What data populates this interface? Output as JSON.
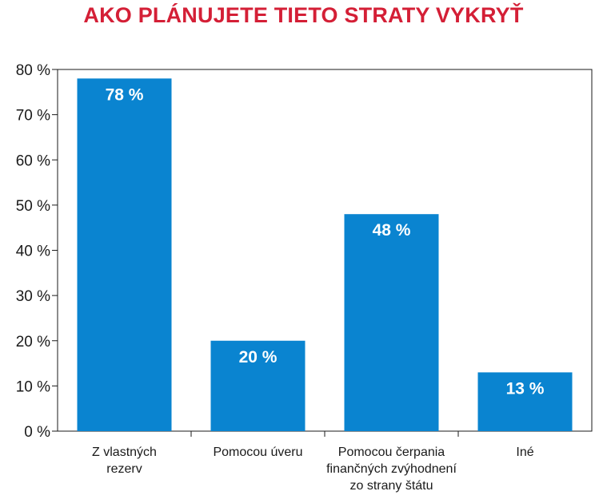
{
  "chart_data": {
    "type": "bar",
    "title": "AKO PLÁNUJETE TIETO STRATY VYKRYŤ",
    "categories": [
      [
        "Z vlastných",
        "rezerv"
      ],
      [
        "Pomocou úveru"
      ],
      [
        "Pomocou čerpania",
        "finančných zvýhodnení",
        "zo strany štátu"
      ],
      [
        "Iné"
      ]
    ],
    "values": [
      78,
      20,
      48,
      13
    ],
    "data_labels": [
      "78 %",
      "20 %",
      "48 %",
      "13 %"
    ],
    "ylim": [
      0,
      80
    ],
    "yticks": [
      0,
      10,
      20,
      30,
      40,
      50,
      60,
      70,
      80
    ],
    "ytick_labels": [
      "0 %",
      "10 %",
      "20 %",
      "30 %",
      "40 %",
      "50 %",
      "60 %",
      "70 %",
      "80 %"
    ],
    "xlabel": "",
    "ylabel": "",
    "grid": false,
    "colors": {
      "bar": "#0a84d0",
      "title": "#d41f36",
      "axis": "#1a1a1a"
    }
  }
}
